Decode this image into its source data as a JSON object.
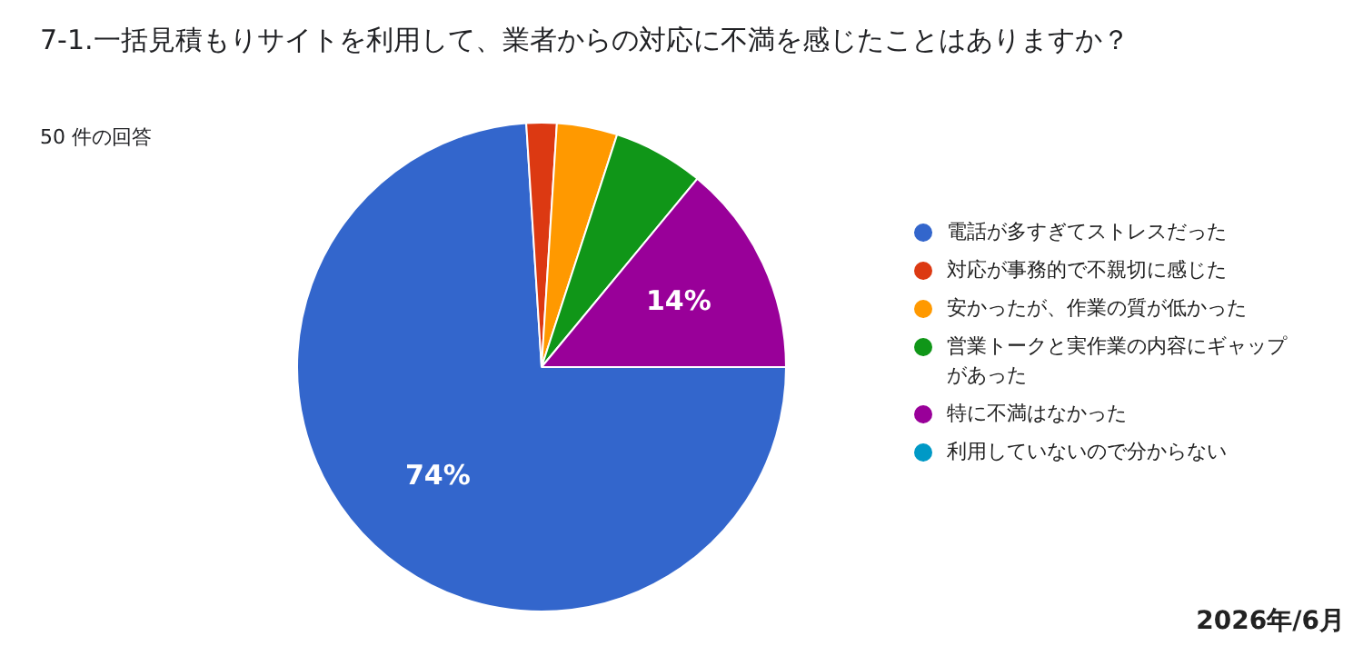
{
  "chart_data": {
    "type": "pie",
    "title": "7-1.一括見積もりサイトを利用して、業者からの対応に不満を感じたことはありますか？",
    "subtitle": "50 件の回答",
    "categories": [
      "電話が多すぎてストレスだった",
      "対応が事務的で不親切に感じた",
      "安かったが、作業の質が低かった",
      "営業トークと実作業の内容にギャップがあった",
      "特に不満はなかった",
      "利用していないので分からない"
    ],
    "values": [
      74,
      2,
      4,
      6,
      14,
      0
    ],
    "colors": [
      "#3366cc",
      "#dc3912",
      "#ff9900",
      "#109618",
      "#990099",
      "#0099c6"
    ],
    "value_labels": [
      "74%",
      null,
      null,
      null,
      "14%",
      null
    ],
    "legend": "right",
    "annotations": [
      "2026年/6月"
    ]
  }
}
